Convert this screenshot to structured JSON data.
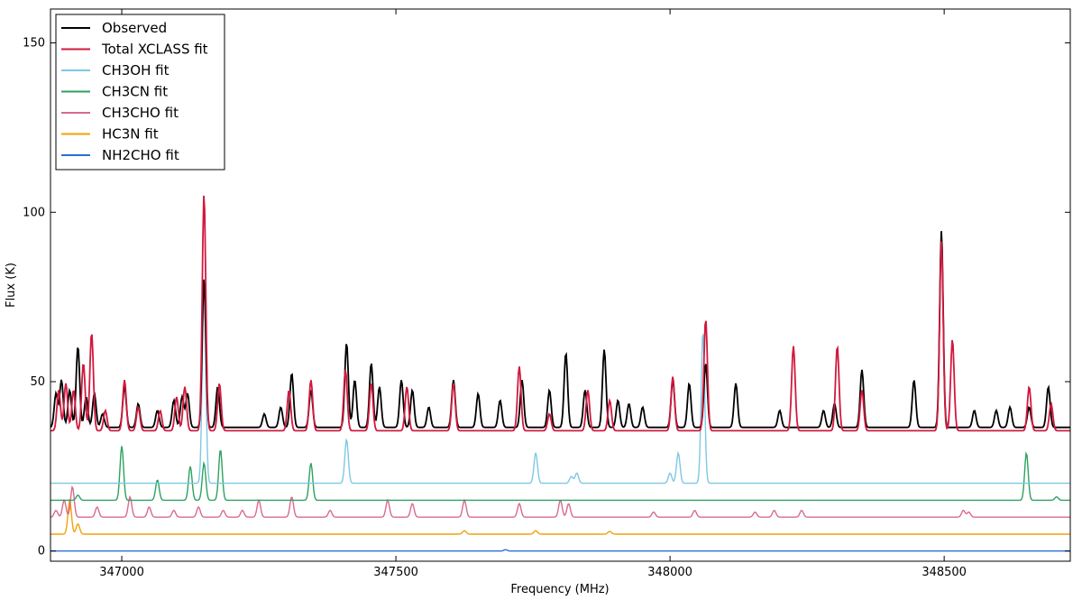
{
  "chart_data": {
    "type": "line",
    "title": "",
    "xlabel": "Frequency (MHz)",
    "ylabel": "Flux (K)",
    "xlim": [
      346870,
      348730
    ],
    "ylim": [
      -3,
      160
    ],
    "x_ticks": [
      347000,
      347500,
      348000,
      348500
    ],
    "y_ticks": [
      0,
      50,
      100,
      150
    ],
    "grid": false,
    "legend": {
      "position": "top-left",
      "entries": [
        "Observed",
        "Total XCLASS fit",
        "CH3OH fit",
        "CH3CN fit",
        "CH3CHO fit",
        "HC3N fit",
        "NH2CHO fit"
      ]
    },
    "series": [
      {
        "name": "Observed",
        "color": "#000000",
        "baseline": 36.5,
        "peaks": [
          [
            346880,
            10
          ],
          [
            346890,
            14
          ],
          [
            346905,
            11
          ],
          [
            346920,
            24
          ],
          [
            346935,
            9
          ],
          [
            346950,
            10
          ],
          [
            346965,
            4
          ],
          [
            347005,
            12
          ],
          [
            347030,
            7
          ],
          [
            347065,
            5
          ],
          [
            347095,
            8
          ],
          [
            347110,
            9
          ],
          [
            347120,
            10
          ],
          [
            347150,
            44
          ],
          [
            347175,
            12
          ],
          [
            347260,
            4
          ],
          [
            347290,
            6
          ],
          [
            347310,
            16
          ],
          [
            347345,
            11
          ],
          [
            347410,
            25
          ],
          [
            347425,
            14
          ],
          [
            347455,
            19
          ],
          [
            347470,
            12
          ],
          [
            347510,
            14
          ],
          [
            347530,
            11
          ],
          [
            347560,
            6
          ],
          [
            347605,
            14
          ],
          [
            347650,
            10
          ],
          [
            347690,
            8
          ],
          [
            347730,
            14
          ],
          [
            347780,
            11
          ],
          [
            347810,
            22
          ],
          [
            347845,
            11
          ],
          [
            347880,
            23
          ],
          [
            347905,
            8
          ],
          [
            347925,
            7
          ],
          [
            347950,
            6
          ],
          [
            348005,
            14
          ],
          [
            348035,
            13
          ],
          [
            348065,
            19
          ],
          [
            348120,
            13
          ],
          [
            348200,
            5
          ],
          [
            348280,
            5
          ],
          [
            348300,
            7
          ],
          [
            348350,
            17
          ],
          [
            348445,
            14
          ],
          [
            348495,
            58
          ],
          [
            348555,
            5
          ],
          [
            348595,
            5
          ],
          [
            348620,
            6
          ],
          [
            348655,
            6
          ],
          [
            348690,
            12
          ]
        ]
      },
      {
        "name": "Total XCLASS fit",
        "color": "#d1193e",
        "baseline": 35.5,
        "peaks": [
          [
            346885,
            12
          ],
          [
            346898,
            14
          ],
          [
            346912,
            12
          ],
          [
            346930,
            20
          ],
          [
            346945,
            29
          ],
          [
            346970,
            6
          ],
          [
            347005,
            15
          ],
          [
            347030,
            7
          ],
          [
            347070,
            6
          ],
          [
            347100,
            10
          ],
          [
            347115,
            13
          ],
          [
            347150,
            70
          ],
          [
            347178,
            14
          ],
          [
            347305,
            12
          ],
          [
            347345,
            15
          ],
          [
            347408,
            18
          ],
          [
            347455,
            14
          ],
          [
            347520,
            13
          ],
          [
            347605,
            14
          ],
          [
            347725,
            19
          ],
          [
            347780,
            5
          ],
          [
            347850,
            12
          ],
          [
            347890,
            9
          ],
          [
            348005,
            16
          ],
          [
            348065,
            33
          ],
          [
            348225,
            25
          ],
          [
            348305,
            25
          ],
          [
            348350,
            12
          ],
          [
            348495,
            56
          ],
          [
            348515,
            27
          ],
          [
            348655,
            13
          ],
          [
            348695,
            8
          ]
        ]
      },
      {
        "name": "CH3OH fit",
        "color": "#7ec8e3",
        "baseline": 20,
        "peaks": [
          [
            347150,
            59
          ],
          [
            347410,
            13
          ],
          [
            347755,
            9
          ],
          [
            347820,
            2
          ],
          [
            347830,
            3
          ],
          [
            348000,
            3
          ],
          [
            348015,
            9
          ],
          [
            348060,
            45
          ]
        ]
      },
      {
        "name": "CH3CN fit",
        "color": "#2ca25f",
        "baseline": 15,
        "peaks": [
          [
            346920,
            1.5
          ],
          [
            347000,
            16
          ],
          [
            347065,
            6
          ],
          [
            347125,
            10
          ],
          [
            347150,
            11
          ],
          [
            347180,
            15
          ],
          [
            347345,
            11
          ],
          [
            348650,
            14
          ],
          [
            348705,
            1
          ]
        ]
      },
      {
        "name": "CH3CHO fit",
        "color": "#d96a8e",
        "baseline": 10,
        "peaks": [
          [
            346880,
            2
          ],
          [
            346895,
            5
          ],
          [
            346910,
            9
          ],
          [
            346955,
            3
          ],
          [
            347015,
            6
          ],
          [
            347050,
            3
          ],
          [
            347095,
            2
          ],
          [
            347140,
            3
          ],
          [
            347185,
            2
          ],
          [
            347220,
            2
          ],
          [
            347250,
            5
          ],
          [
            347310,
            6
          ],
          [
            347380,
            2
          ],
          [
            347485,
            5
          ],
          [
            347530,
            4
          ],
          [
            347625,
            5
          ],
          [
            347725,
            4
          ],
          [
            347800,
            5
          ],
          [
            347815,
            4
          ],
          [
            347970,
            1.5
          ],
          [
            348045,
            2
          ],
          [
            348155,
            1.5
          ],
          [
            348190,
            2
          ],
          [
            348240,
            2
          ],
          [
            348535,
            2
          ],
          [
            348545,
            1.5
          ]
        ]
      },
      {
        "name": "HC3N fit",
        "color": "#f2a20a",
        "baseline": 5,
        "peaks": [
          [
            346905,
            10
          ],
          [
            346920,
            3
          ],
          [
            347625,
            1
          ],
          [
            347755,
            1
          ],
          [
            347890,
            0.8
          ]
        ]
      },
      {
        "name": "NH2CHO fit",
        "color": "#2e6fd6",
        "baseline": 0,
        "peaks": [
          [
            347700,
            0.4
          ]
        ]
      }
    ]
  }
}
